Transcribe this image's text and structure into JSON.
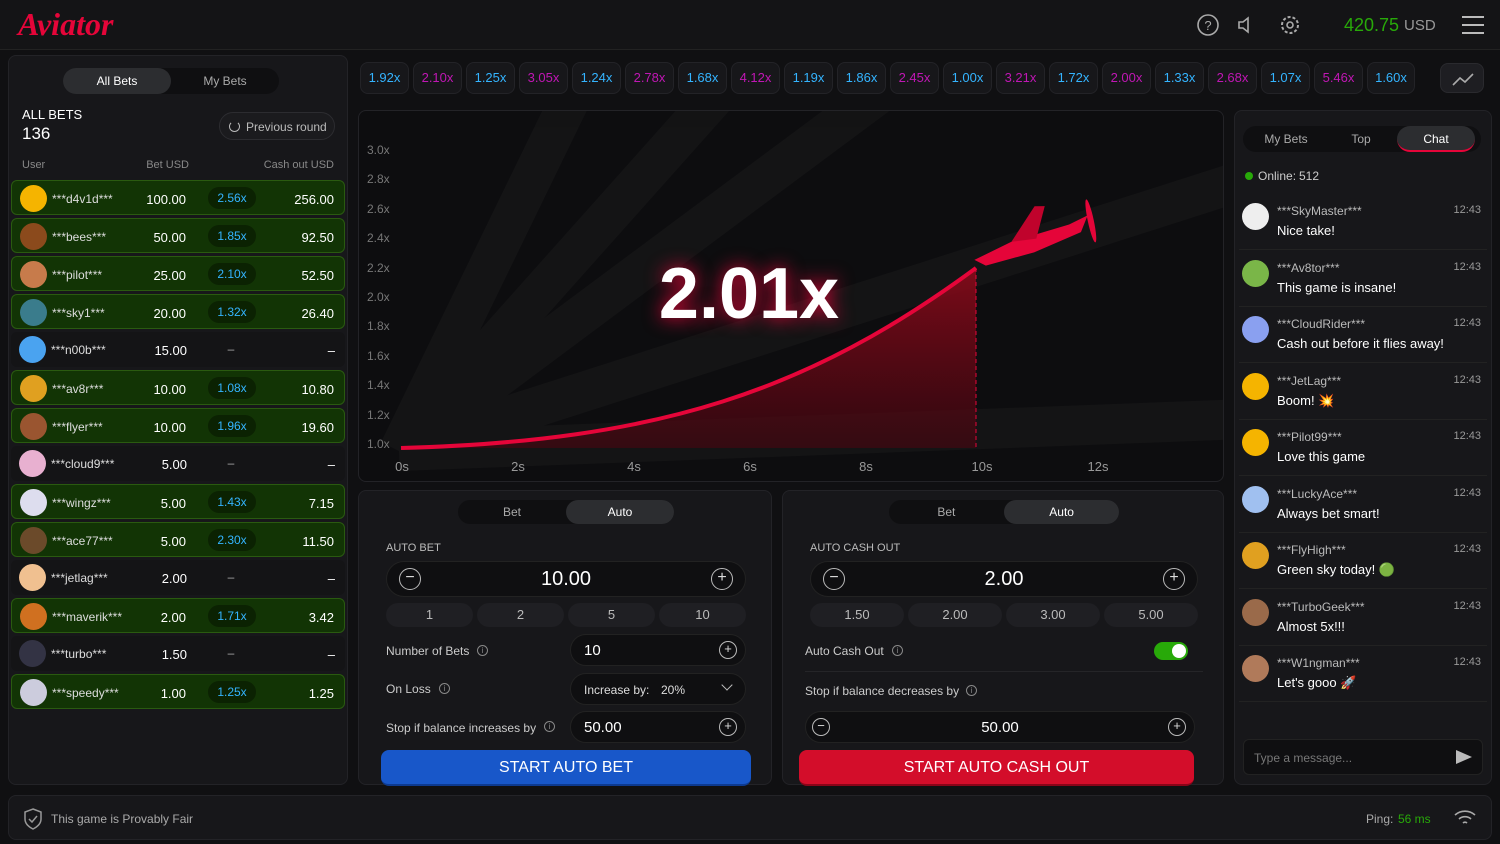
{
  "header": {
    "logo": "Aviator",
    "balance": "420.75",
    "currency": "USD"
  },
  "history": [
    "1.92x",
    "2.10x",
    "1.25x",
    "3.05x",
    "1.24x",
    "2.78x",
    "1.68x",
    "4.12x",
    "1.19x",
    "1.86x",
    "2.45x",
    "1.00x",
    "3.21x",
    "1.72x",
    "2.00x",
    "1.33x",
    "2.68x",
    "1.07x",
    "5.46x",
    "1.60x"
  ],
  "bets": {
    "tabs": [
      "All Bets",
      "My Bets"
    ],
    "title": "ALL BETS",
    "count": "136",
    "previous": "Previous round",
    "columns": [
      "User",
      "Bet USD",
      "Cash out USD"
    ],
    "rows": [
      [
        "***d4v1d***",
        "100.00",
        "2.56x",
        "256.00"
      ],
      [
        "***bees***",
        "50.00",
        "1.85x",
        "92.50"
      ],
      [
        "***pilot***",
        "25.00",
        "2.10x",
        "52.50"
      ],
      [
        "***sky1***",
        "20.00",
        "1.32x",
        "26.40"
      ],
      [
        "***n00b***",
        "15.00",
        "–",
        "–"
      ],
      [
        "***av8r***",
        "10.00",
        "1.08x",
        "10.80"
      ],
      [
        "***flyer***",
        "10.00",
        "1.96x",
        "19.60"
      ],
      [
        "***cloud9***",
        "5.00",
        "–",
        "–"
      ],
      [
        "***wingz***",
        "5.00",
        "1.43x",
        "7.15"
      ],
      [
        "***ace77***",
        "5.00",
        "2.30x",
        "11.50"
      ],
      [
        "***jetlag***",
        "2.00",
        "–",
        "–"
      ],
      [
        "***maverik***",
        "2.00",
        "1.71x",
        "3.42"
      ],
      [
        "***turbo***",
        "1.50",
        "–",
        "–"
      ],
      [
        "***speedy***",
        "1.00",
        "1.25x",
        "1.25"
      ]
    ]
  },
  "game": {
    "multiplier": "2.01x",
    "y_labels": [
      "3.0x",
      "2.8x",
      "2.6x",
      "2.4x",
      "2.2x",
      "2.0x",
      "1.8x",
      "1.6x",
      "1.4x",
      "1.2x",
      "1.0x"
    ],
    "x_labels": [
      "0s",
      "2s",
      "4s",
      "6s",
      "8s",
      "10s",
      "12s"
    ]
  },
  "panel_left": {
    "tabs": [
      "Bet",
      "Auto"
    ],
    "label": "AUTO BET",
    "amount": "10.00",
    "quick": [
      "1",
      "2",
      "5",
      "10"
    ],
    "number_of_bets_label": "Number of Bets",
    "number_of_bets": "10",
    "on_loss_label": "On Loss",
    "increase_label": "Increase by:",
    "increase_value": "20%",
    "stop_label": "Stop if balance increases by",
    "stop_value": "50.00",
    "button": "START AUTO BET"
  },
  "panel_right": {
    "tabs": [
      "Bet",
      "Auto"
    ],
    "label": "AUTO CASH OUT",
    "amount": "2.00",
    "quick": [
      "1.50",
      "2.00",
      "3.00",
      "5.00"
    ],
    "toggle_label": "Auto Cash Out",
    "stop_label": "Stop if balance decreases by",
    "stop_value": "50.00",
    "button": "START AUTO CASH OUT"
  },
  "chat": {
    "tabs": [
      "My Bets",
      "Top",
      "Chat"
    ],
    "online_label": "Online:",
    "online": "512",
    "placeholder": "Type a message...",
    "messages": [
      {
        "user": "***SkyMaster***",
        "time": "12:43",
        "text": "Nice take!"
      },
      {
        "user": "***Av8tor***",
        "time": "12:43",
        "text": "This game is insane!"
      },
      {
        "user": "***CloudRider***",
        "time": "12:43",
        "text": "Cash out before it flies away!"
      },
      {
        "user": "***JetLag***",
        "time": "12:43",
        "text": "Boom! 💥"
      },
      {
        "user": "***Pilot99***",
        "time": "12:43",
        "text": "Love this game"
      },
      {
        "user": "***LuckyAce***",
        "time": "12:43",
        "text": "Always bet smart!"
      },
      {
        "user": "***FlyHigh***",
        "time": "12:43",
        "text": "Green sky today! 🟢"
      },
      {
        "user": "***TurboGeek***",
        "time": "12:43",
        "text": "Almost 5x!!!"
      },
      {
        "user": "***W1ngman***",
        "time": "12:43",
        "text": "Let's gooo 🚀"
      }
    ]
  },
  "footer": {
    "fair": "This game is Provably Fair",
    "ping_label": "Ping:",
    "ping": "56 ms"
  }
}
